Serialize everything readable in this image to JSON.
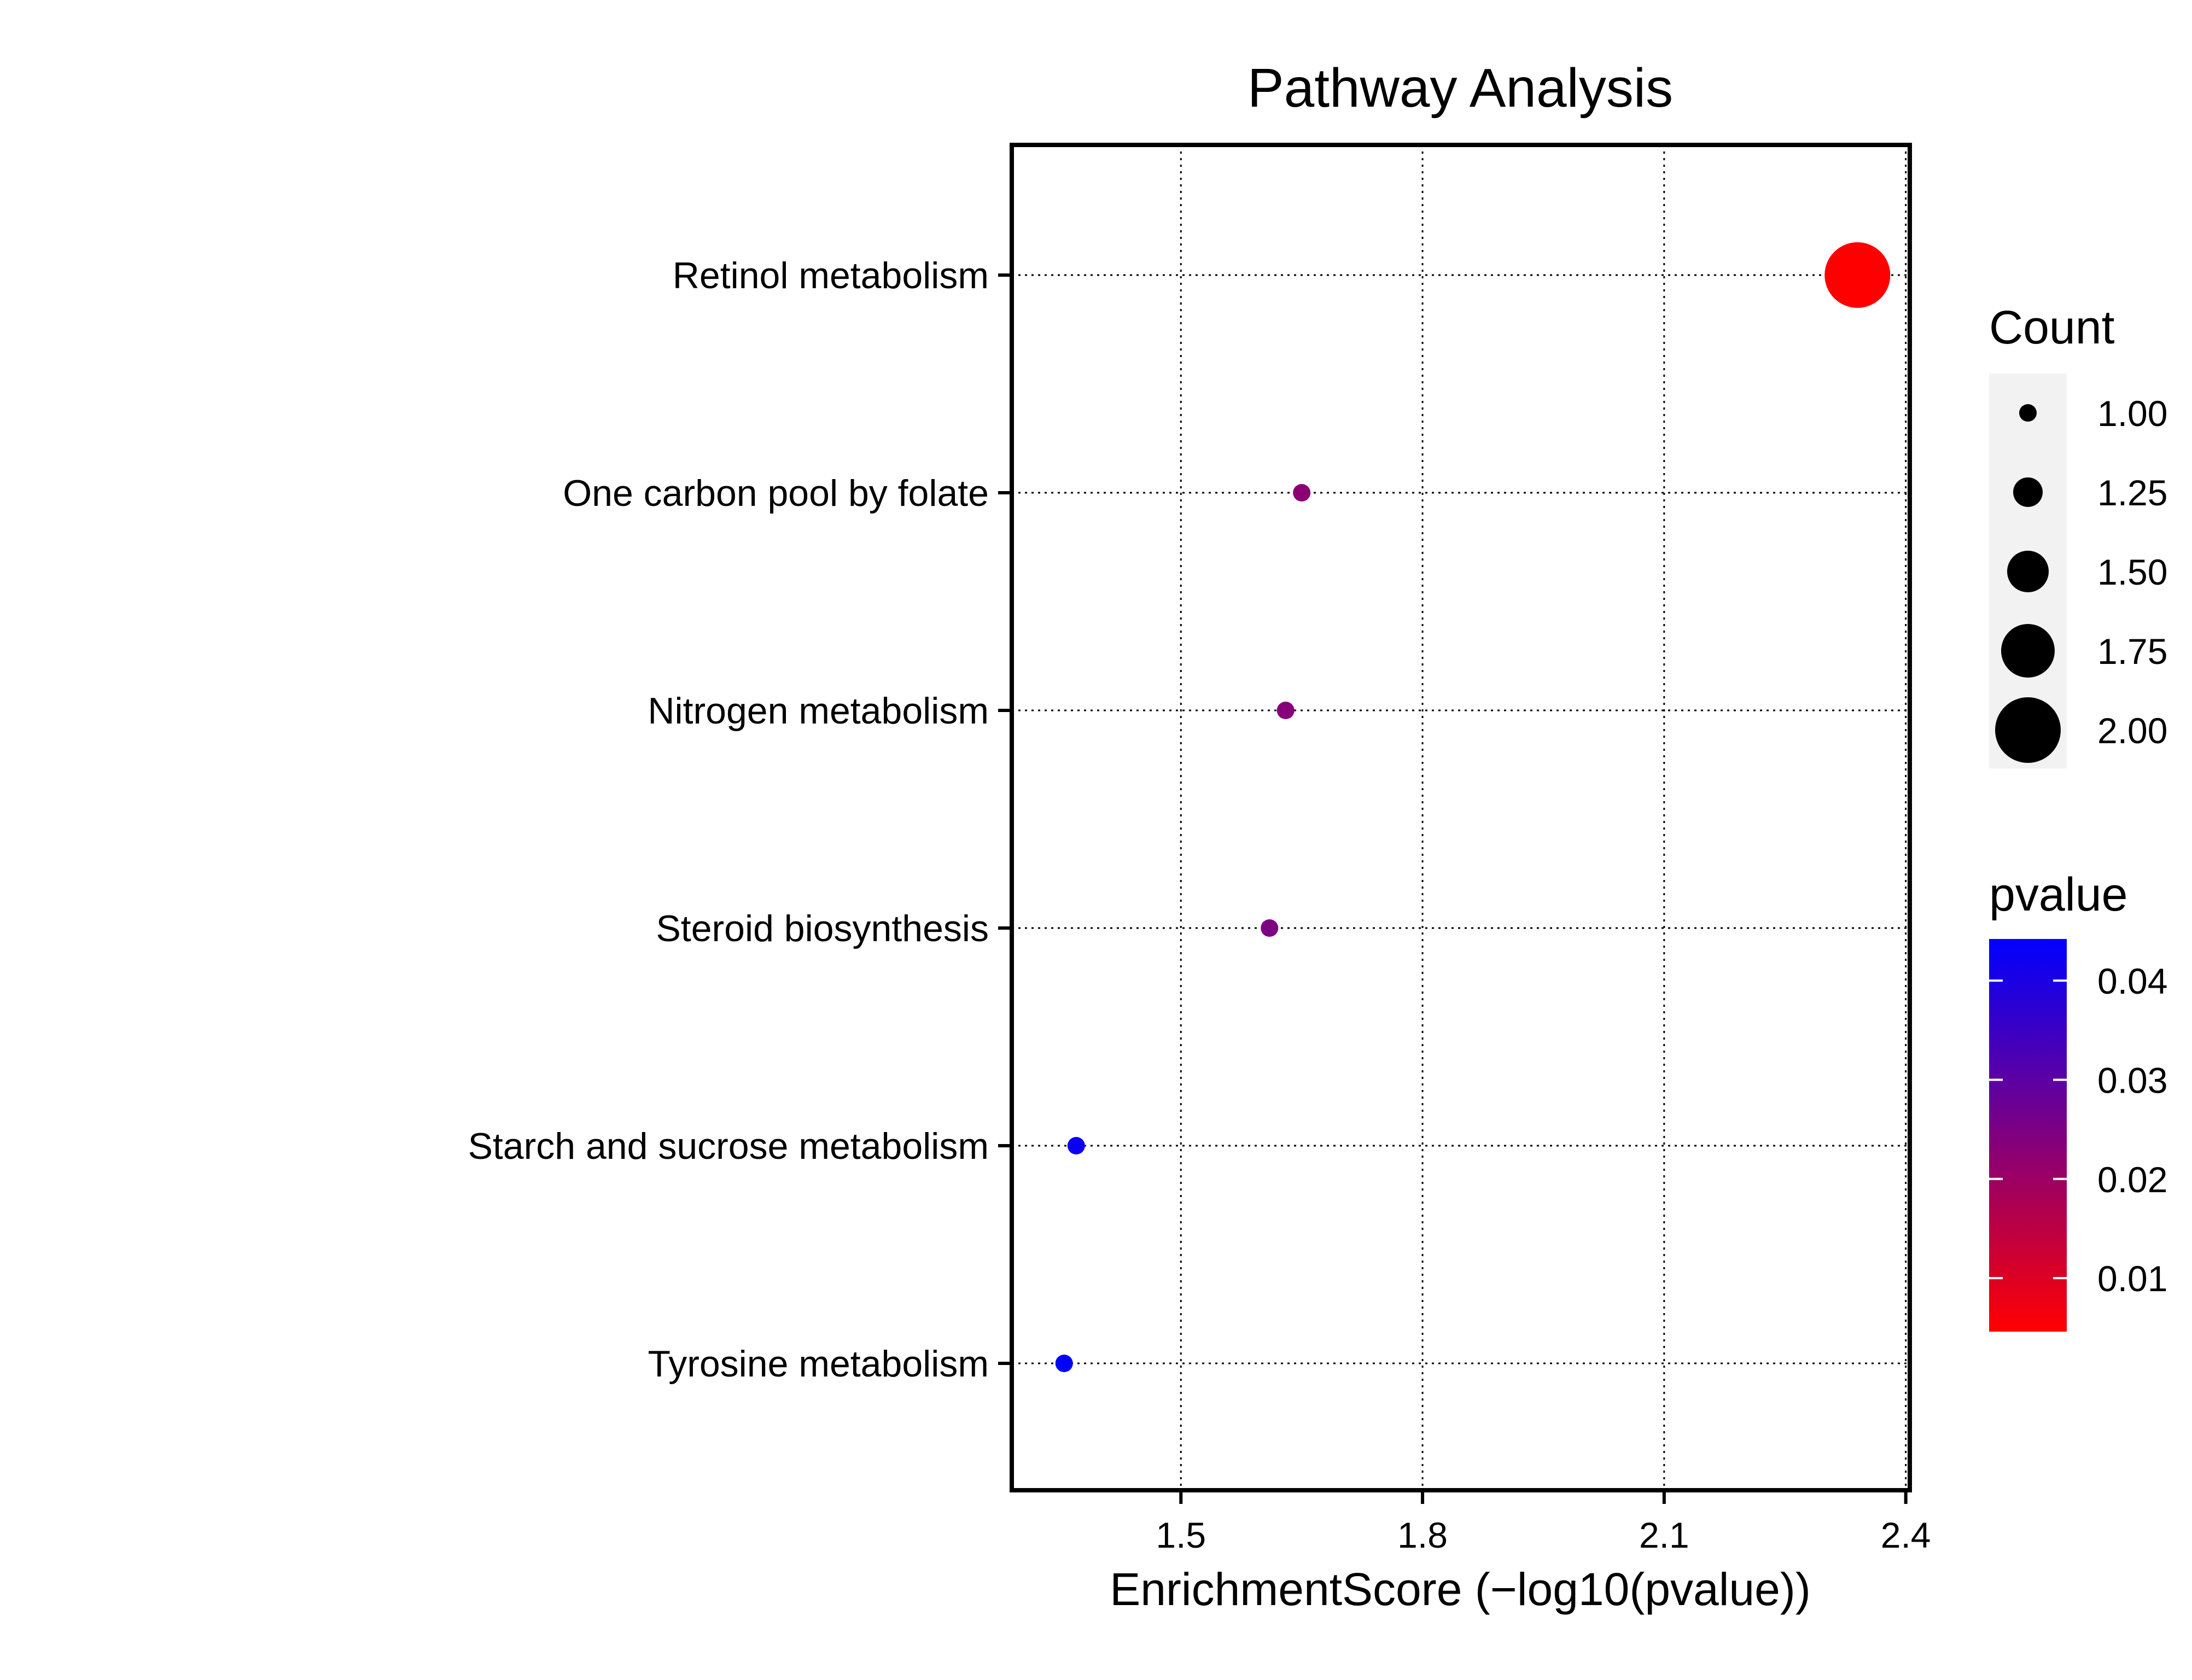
{
  "chart_data": {
    "type": "scatter",
    "title": "Pathway Analysis",
    "xlabel": "EnrichmentScore (−log10(pvalue))",
    "ylabel": "",
    "xlim": [
      1.29,
      2.405
    ],
    "xticks": [
      1.5,
      1.8,
      2.1,
      2.4
    ],
    "xtick_labels": [
      "1.5",
      "1.8",
      "2.1",
      "2.4"
    ],
    "grid": true,
    "categories": [
      "Retinol metabolism",
      "One carbon pool by folate",
      "Nitrogen metabolism",
      "Steroid biosynthesis",
      "Starch and sucrose metabolism",
      "Tyrosine metabolism"
    ],
    "points": [
      {
        "pathway": "Retinol metabolism",
        "x": 2.34,
        "count": 2,
        "pvalue": 0.0046
      },
      {
        "pathway": "One carbon pool by folate",
        "x": 1.65,
        "count": 1,
        "pvalue": 0.0224
      },
      {
        "pathway": "Nitrogen metabolism",
        "x": 1.63,
        "count": 1,
        "pvalue": 0.0236
      },
      {
        "pathway": "Steroid biosynthesis",
        "x": 1.61,
        "count": 1,
        "pvalue": 0.0248
      },
      {
        "pathway": "Starch and sucrose metabolism",
        "x": 1.37,
        "count": 1,
        "pvalue": 0.0424
      },
      {
        "pathway": "Tyrosine metabolism",
        "x": 1.355,
        "count": 1,
        "pvalue": 0.0442
      }
    ],
    "legend_size": {
      "title": "Count",
      "values": [
        1.0,
        1.25,
        1.5,
        1.75,
        2.0
      ],
      "labels": [
        "1.00",
        "1.25",
        "1.50",
        "1.75",
        "2.00"
      ]
    },
    "legend_color": {
      "title": "pvalue",
      "range": [
        0.0046,
        0.0442
      ],
      "ticks": [
        0.01,
        0.02,
        0.03,
        0.04
      ],
      "labels": [
        "0.01",
        "0.02",
        "0.03",
        "0.04"
      ],
      "low_color": "#ff0000",
      "high_color": "#0000ff"
    },
    "legend_placement": "right"
  }
}
